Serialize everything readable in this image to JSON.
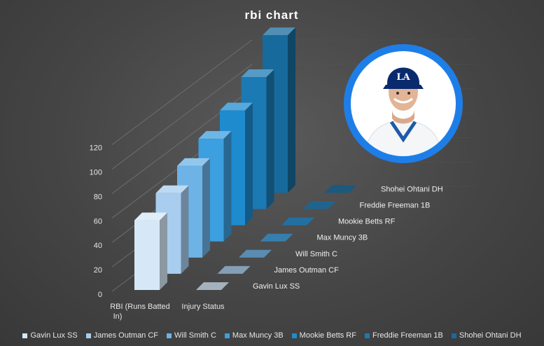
{
  "chart_data": {
    "type": "bar",
    "title": "rbi chart",
    "categories": [
      "RBI (Runs Batted In)",
      "Injury Status"
    ],
    "series": [
      {
        "name": "Gavin Lux SS",
        "values": [
          57,
          0
        ]
      },
      {
        "name": "James Outman CF",
        "values": [
          66,
          0
        ]
      },
      {
        "name": "Will Smith C",
        "values": [
          75,
          0
        ]
      },
      {
        "name": "Max Muncy 3B",
        "values": [
          84,
          0
        ]
      },
      {
        "name": "Mookie Betts RF",
        "values": [
          94,
          0
        ]
      },
      {
        "name": "Freddie Freeman 1B",
        "values": [
          108,
          0
        ]
      },
      {
        "name": "Shohei Ohtani DH",
        "values": [
          129,
          0
        ]
      }
    ],
    "yticks": [
      0,
      20,
      40,
      60,
      80,
      100,
      120
    ],
    "ylim": [
      0,
      120
    ],
    "legend": "bottom",
    "chart_style": "3d-column",
    "series_colors": [
      "#d6e8f7",
      "#a8cdee",
      "#6db3e6",
      "#3c9fdf",
      "#1f8bcf",
      "#1b79b3",
      "#176a9c"
    ]
  },
  "photo": {
    "icon": "player-headshot-icon",
    "ring_color": "#1e7ee8"
  }
}
